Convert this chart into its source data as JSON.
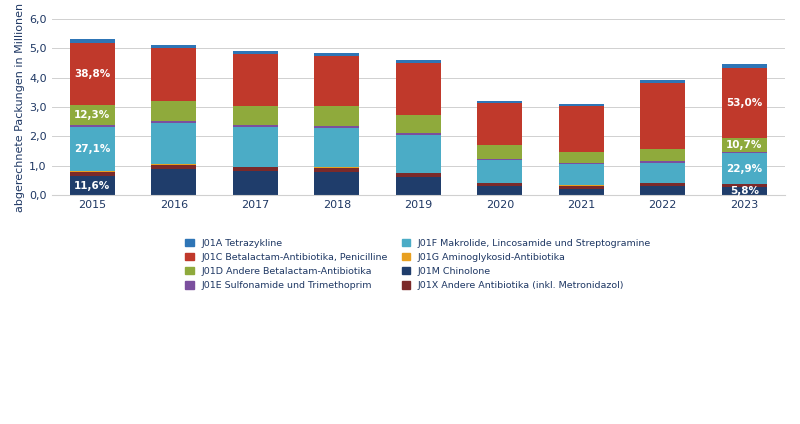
{
  "years": [
    "2015",
    "2016",
    "2017",
    "2018",
    "2019",
    "2020",
    "2021",
    "2022",
    "2023"
  ],
  "segments": {
    "J01M": [
      0.64,
      0.9,
      0.82,
      0.8,
      0.62,
      0.3,
      0.22,
      0.3,
      0.261
    ],
    "J01X": [
      0.15,
      0.14,
      0.13,
      0.13,
      0.13,
      0.1,
      0.085,
      0.1,
      0.11
    ],
    "J01G": [
      0.02,
      0.018,
      0.018,
      0.03,
      0.018,
      0.01,
      0.03,
      0.02,
      0.018
    ],
    "J01F": [
      1.495,
      1.39,
      1.36,
      1.34,
      1.28,
      0.78,
      0.72,
      0.68,
      1.031
    ],
    "J01E": [
      0.07,
      0.07,
      0.07,
      0.07,
      0.07,
      0.045,
      0.04,
      0.06,
      0.055
    ],
    "J01D": [
      0.679,
      0.68,
      0.65,
      0.65,
      0.61,
      0.47,
      0.37,
      0.42,
      0.482
    ],
    "J01C": [
      2.141,
      1.81,
      1.76,
      1.72,
      1.77,
      1.43,
      1.57,
      2.25,
      2.385
    ],
    "J01A": [
      0.125,
      0.112,
      0.112,
      0.1,
      0.102,
      0.085,
      0.075,
      0.1,
      0.108
    ]
  },
  "colors": {
    "J01M": "#1f3d6b",
    "J01X": "#7b2a2a",
    "J01G": "#e8a020",
    "J01F": "#4bacc6",
    "J01E": "#7b4f9e",
    "J01D": "#8faa3c",
    "J01C": "#c0392b",
    "J01A": "#2e75b6"
  },
  "legend_items": [
    [
      "J01A Tetrazykline",
      "#2e75b6"
    ],
    [
      "J01C Betalactam-Antibiotika, Penicilline",
      "#c0392b"
    ],
    [
      "J01D Andere Betalactam-Antibiotika",
      "#8faa3c"
    ],
    [
      "J01E Sulfonamide und Trimethoprim",
      "#7b4f9e"
    ],
    [
      "J01F Makrolide, Lincosamide und Streptogramine",
      "#4bacc6"
    ],
    [
      "J01G Aminoglykosid-Antibiotika",
      "#e8a020"
    ],
    [
      "J01M Chinolone",
      "#1f3d6b"
    ],
    [
      "J01X Andere Antibiotika (inkl. Metronidazol)",
      "#7b2a2a"
    ]
  ],
  "annotations_2015": [
    {
      "text": "38,8%",
      "segment": "J01C"
    },
    {
      "text": "12,3%",
      "segment": "J01D"
    },
    {
      "text": "27,1%",
      "segment": "J01F"
    },
    {
      "text": "11,6%",
      "segment": "J01M"
    }
  ],
  "annotations_2023": [
    {
      "text": "53,0%",
      "segment": "J01C"
    },
    {
      "text": "10,7%",
      "segment": "J01D"
    },
    {
      "text": "22,9%",
      "segment": "J01F"
    },
    {
      "text": "5,8%",
      "segment": "J01M"
    }
  ],
  "ylabel": "abgerechnete Packungen in Millionen",
  "ylim": [
    0,
    6.0
  ],
  "yticks": [
    0.0,
    1.0,
    2.0,
    3.0,
    4.0,
    5.0,
    6.0
  ],
  "ytick_labels": [
    "0,0",
    "1,0",
    "2,0",
    "3,0",
    "4,0",
    "5,0",
    "6,0"
  ],
  "bar_width": 0.55,
  "background_color": "#ffffff",
  "grid_color": "#d0d0d0",
  "text_color": "#1f3864",
  "annotation_fontsize": 7.5,
  "tick_fontsize": 8,
  "ylabel_fontsize": 8
}
